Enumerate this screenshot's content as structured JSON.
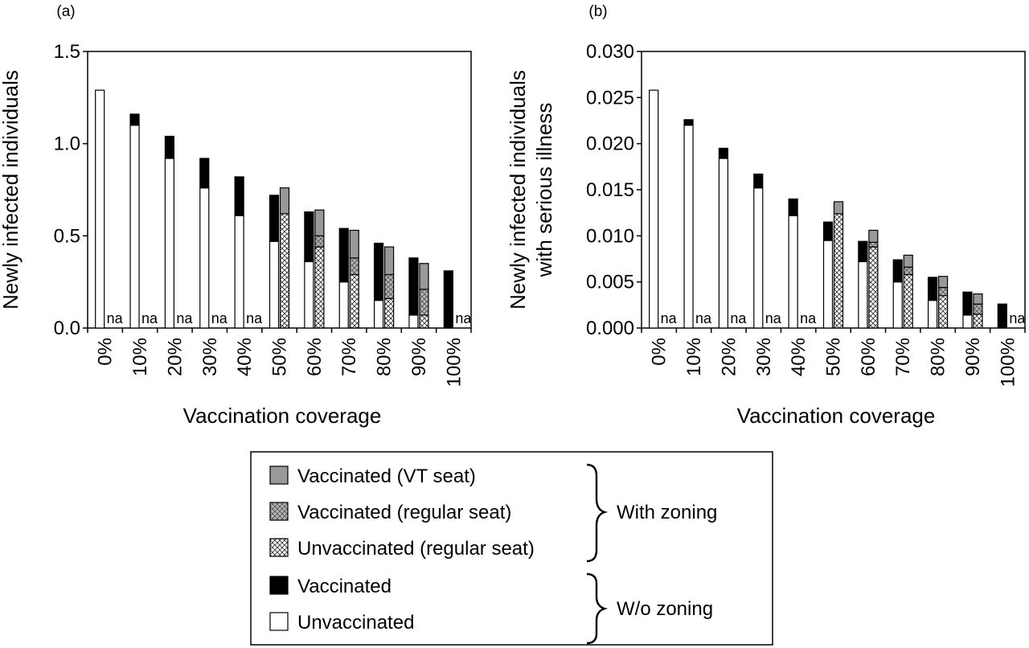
{
  "colors": {
    "vt_seat": "#999999",
    "vaccinated": "#000000",
    "unvaccinated": "#ffffff",
    "frame": "#000000"
  },
  "chart_data": [
    {
      "panel_label": "(a)",
      "type": "bar",
      "stacked": true,
      "ylabel": [
        "Newly infected individuals"
      ],
      "xlabel": "Vaccination coverage",
      "ylim": [
        0,
        1.5
      ],
      "yticks": [
        "0.0",
        "0.5",
        "1.0",
        "1.5"
      ],
      "grid": false,
      "categories": [
        "0%",
        "10%",
        "20%",
        "30%",
        "40%",
        "50%",
        "60%",
        "70%",
        "80%",
        "90%",
        "100%"
      ],
      "without_zoning": {
        "unvaccinated": [
          1.29,
          1.1,
          0.92,
          0.76,
          0.61,
          0.47,
          0.36,
          0.25,
          0.15,
          0.07,
          0.0
        ],
        "vaccinated": [
          0.0,
          0.06,
          0.12,
          0.16,
          0.21,
          0.25,
          0.27,
          0.29,
          0.31,
          0.31,
          0.31
        ]
      },
      "with_zoning": {
        "unvaccinated_regular": [
          null,
          null,
          null,
          null,
          null,
          0.62,
          0.44,
          0.29,
          0.16,
          0.07,
          null
        ],
        "vaccinated_regular": [
          null,
          null,
          null,
          null,
          null,
          0.0,
          0.06,
          0.09,
          0.13,
          0.14,
          null
        ],
        "vaccinated_vt": [
          null,
          null,
          null,
          null,
          null,
          0.14,
          0.14,
          0.15,
          0.15,
          0.14,
          null
        ]
      },
      "na_labels": [
        "na",
        "na",
        "na",
        "na",
        "na",
        "",
        "",
        "",
        "",
        "",
        "na"
      ]
    },
    {
      "panel_label": "(b)",
      "type": "bar",
      "stacked": true,
      "ylabel": [
        "Newly infected individuals",
        "with serious illness"
      ],
      "xlabel": "Vaccination coverage",
      "ylim": [
        0,
        0.03
      ],
      "yticks": [
        "0.000",
        "0.005",
        "0.010",
        "0.015",
        "0.020",
        "0.025",
        "0.030"
      ],
      "grid": false,
      "categories": [
        "0%",
        "10%",
        "20%",
        "30%",
        "40%",
        "50%",
        "60%",
        "70%",
        "80%",
        "90%",
        "100%"
      ],
      "without_zoning": {
        "unvaccinated": [
          0.0258,
          0.022,
          0.0184,
          0.0152,
          0.0122,
          0.0095,
          0.0072,
          0.005,
          0.003,
          0.0014,
          0.0
        ],
        "vaccinated": [
          0.0,
          0.0006,
          0.0011,
          0.0015,
          0.0018,
          0.002,
          0.0022,
          0.0024,
          0.0025,
          0.0025,
          0.0026
        ]
      },
      "with_zoning": {
        "unvaccinated_regular": [
          null,
          null,
          null,
          null,
          null,
          0.0124,
          0.0088,
          0.0058,
          0.0035,
          0.0015,
          null
        ],
        "vaccinated_regular": [
          null,
          null,
          null,
          null,
          null,
          0.0,
          0.0005,
          0.0008,
          0.0009,
          0.0011,
          null
        ],
        "vaccinated_vt": [
          null,
          null,
          null,
          null,
          null,
          0.0013,
          0.0013,
          0.0013,
          0.0012,
          0.0011,
          null
        ]
      },
      "na_labels": [
        "na",
        "na",
        "na",
        "na",
        "na",
        "",
        "",
        "",
        "",
        "",
        "na"
      ]
    }
  ],
  "legend": {
    "items": [
      {
        "label": "Vaccinated (VT seat)",
        "style": "vt_seat"
      },
      {
        "label": "Vaccinated (regular seat)",
        "style": "vaccinated_regular"
      },
      {
        "label": "Unvaccinated (regular seat)",
        "style": "unvaccinated_regular"
      },
      {
        "label": "Vaccinated",
        "style": "vaccinated"
      },
      {
        "label": "Unvaccinated",
        "style": "unvaccinated"
      }
    ],
    "group_with_zoning": "With zoning",
    "group_without_zoning": "W/o zoning"
  }
}
